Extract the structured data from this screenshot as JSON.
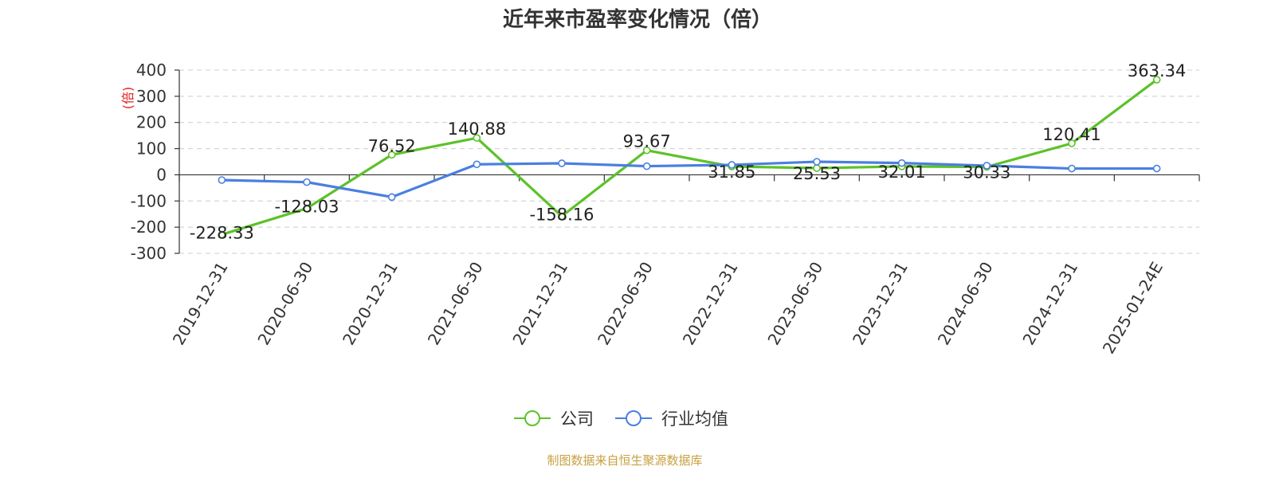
{
  "title": "近年来市盈率变化情况（倍）",
  "unit_label": "(倍)",
  "source_text": "制图数据来自恒生聚源数据库",
  "colors": {
    "company": "#5cc229",
    "industry": "#4a7fe0",
    "unit": "#e02020",
    "source": "#c8a040"
  },
  "chart_data": {
    "type": "line",
    "title": "近年来市盈率变化情况（倍）",
    "ylabel": "(倍)",
    "ylim": [
      -300,
      400
    ],
    "yticks": [
      400,
      300,
      200,
      100,
      0,
      -100,
      -200,
      -300
    ],
    "grid": true,
    "legend_position": "bottom-center",
    "categories": [
      "2019-12-31",
      "2020-06-30",
      "2020-12-31",
      "2021-06-30",
      "2021-12-31",
      "2022-06-30",
      "2022-12-31",
      "2023-06-30",
      "2023-12-31",
      "2024-06-30",
      "2024-12-31",
      "2025-01-24E"
    ],
    "series": [
      {
        "name": "公司",
        "color": "#5cc229",
        "values": [
          -228.33,
          -128.03,
          76.52,
          140.88,
          -158.16,
          93.67,
          31.85,
          25.53,
          32.01,
          30.33,
          120.41,
          363.34
        ],
        "labels": [
          "-228.33",
          "-128.03",
          "76.52",
          "140.88",
          "-158.16",
          "93.67",
          "31.85",
          "25.53",
          "32.01",
          "30.33",
          "120.41",
          "363.34"
        ]
      },
      {
        "name": "行业均值",
        "color": "#4a7fe0",
        "values": [
          -20,
          -28,
          -85,
          40,
          44,
          33,
          38,
          50,
          45,
          35,
          24,
          24
        ]
      }
    ]
  }
}
